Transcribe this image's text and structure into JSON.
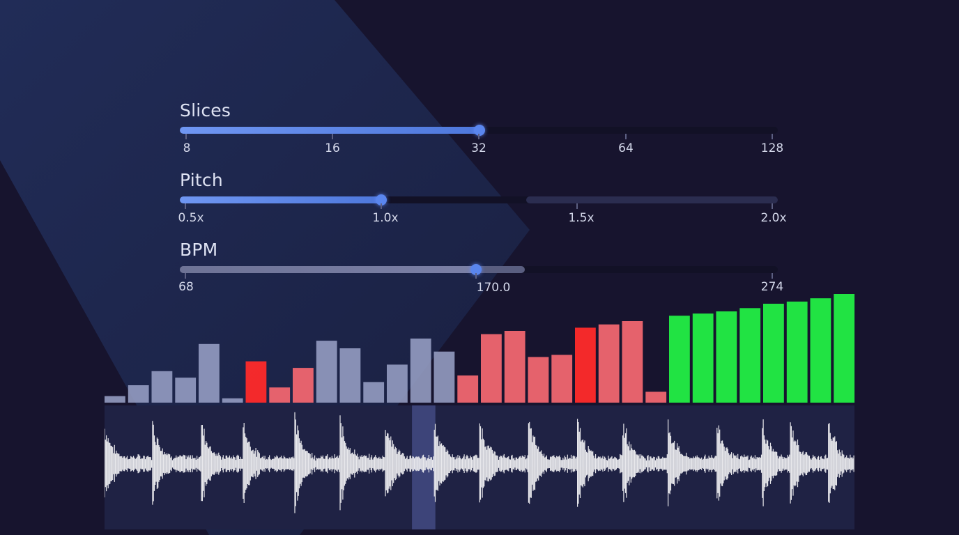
{
  "colors": {
    "background": "#17142e",
    "slider_fill": "#5a86ee",
    "bar_neutral": "#9ba3c9",
    "bar_red": "#f06670",
    "bar_red_strong": "#ff2a2a",
    "bar_green": "#22ee44",
    "waveform": "#e8e8ec"
  },
  "sliders": {
    "slices": {
      "label": "Slices",
      "ticks": [
        "8",
        "16",
        "32",
        "64",
        "128"
      ],
      "value": "32",
      "fraction": 0.5
    },
    "pitch": {
      "label": "Pitch",
      "ticks": [
        "0.5x",
        "1.0x",
        "1.5x",
        "2.0x"
      ],
      "value": "1.0x",
      "fraction": 0.333
    },
    "bpm": {
      "label": "BPM",
      "ticks": [
        "68",
        "170.0",
        "274"
      ],
      "value": "170.0",
      "fraction": 0.495
    }
  },
  "slice_bars": [
    {
      "level": 0.06,
      "color": "neutral"
    },
    {
      "level": 0.16,
      "color": "neutral"
    },
    {
      "level": 0.29,
      "color": "neutral"
    },
    {
      "level": 0.23,
      "color": "neutral"
    },
    {
      "level": 0.54,
      "color": "neutral"
    },
    {
      "level": 0.04,
      "color": "neutral"
    },
    {
      "level": 0.38,
      "color": "red_strong"
    },
    {
      "level": 0.14,
      "color": "red"
    },
    {
      "level": 0.32,
      "color": "red"
    },
    {
      "level": 0.57,
      "color": "neutral"
    },
    {
      "level": 0.5,
      "color": "neutral"
    },
    {
      "level": 0.19,
      "color": "neutral"
    },
    {
      "level": 0.35,
      "color": "neutral"
    },
    {
      "level": 0.59,
      "color": "neutral"
    },
    {
      "level": 0.47,
      "color": "neutral"
    },
    {
      "level": 0.25,
      "color": "red"
    },
    {
      "level": 0.63,
      "color": "red"
    },
    {
      "level": 0.66,
      "color": "red"
    },
    {
      "level": 0.42,
      "color": "red"
    },
    {
      "level": 0.44,
      "color": "red"
    },
    {
      "level": 0.69,
      "color": "red_strong"
    },
    {
      "level": 0.72,
      "color": "red"
    },
    {
      "level": 0.75,
      "color": "red"
    },
    {
      "level": 0.1,
      "color": "red"
    },
    {
      "level": 0.8,
      "color": "green"
    },
    {
      "level": 0.82,
      "color": "green"
    },
    {
      "level": 0.84,
      "color": "green"
    },
    {
      "level": 0.87,
      "color": "green"
    },
    {
      "level": 0.91,
      "color": "green"
    },
    {
      "level": 0.93,
      "color": "green"
    },
    {
      "level": 0.96,
      "color": "green"
    },
    {
      "level": 1.0,
      "color": "green"
    }
  ],
  "waveform": {
    "selected_slice": 13,
    "slice_count": 32
  }
}
